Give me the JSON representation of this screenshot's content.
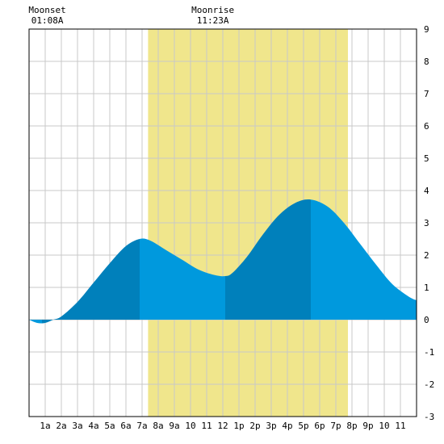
{
  "chart_data": {
    "type": "area",
    "x_unit": "hour of day",
    "xlim": [
      0,
      24
    ],
    "ylim": [
      -3,
      9
    ],
    "x_tick_labels": [
      "1a",
      "2a",
      "3a",
      "4a",
      "5a",
      "6a",
      "7a",
      "8a",
      "9a",
      "10",
      "11",
      "12",
      "1p",
      "2p",
      "3p",
      "4p",
      "5p",
      "6p",
      "7p",
      "8p",
      "9p",
      "10",
      "11"
    ],
    "y_tick_labels": [
      "-3",
      "-2",
      "-1",
      "0",
      "1",
      "2",
      "3",
      "4",
      "5",
      "6",
      "7",
      "8",
      "9"
    ],
    "grid": true,
    "daylight_band": {
      "start": 7.37,
      "end": 19.75,
      "color": "#f0e68c"
    },
    "moon_events": [
      {
        "label": "Moonset",
        "time": "01:08A",
        "x": 1.13
      },
      {
        "label": "Moonrise",
        "time": "11:23A",
        "x": 11.38
      }
    ],
    "tide_extremes": [
      {
        "kind": "low",
        "x": 0.8,
        "y": -0.12
      },
      {
        "kind": "high",
        "x": 6.85,
        "y": 2.5
      },
      {
        "kind": "low",
        "x": 12.15,
        "y": 1.35
      },
      {
        "kind": "high",
        "x": 17.45,
        "y": 3.72
      },
      {
        "kind": "low",
        "x": 24.0,
        "y": 0.6
      }
    ],
    "series": [
      {
        "values": [
          [
            0,
            0
          ],
          [
            0.5,
            -0.1
          ],
          [
            1,
            -0.1
          ],
          [
            1.5,
            0
          ],
          [
            2,
            0.1
          ],
          [
            3,
            0.55
          ],
          [
            4,
            1.15
          ],
          [
            5,
            1.75
          ],
          [
            6,
            2.28
          ],
          [
            6.85,
            2.5
          ],
          [
            7.5,
            2.45
          ],
          [
            8.5,
            2.15
          ],
          [
            9.5,
            1.85
          ],
          [
            10.5,
            1.55
          ],
          [
            11.5,
            1.38
          ],
          [
            12.15,
            1.35
          ],
          [
            12.6,
            1.45
          ],
          [
            13.5,
            1.95
          ],
          [
            14.5,
            2.65
          ],
          [
            15.5,
            3.25
          ],
          [
            16.5,
            3.62
          ],
          [
            17.45,
            3.72
          ],
          [
            18.5,
            3.5
          ],
          [
            19.5,
            3.0
          ],
          [
            20.5,
            2.35
          ],
          [
            21.5,
            1.7
          ],
          [
            22.5,
            1.1
          ],
          [
            23.5,
            0.72
          ],
          [
            24,
            0.6
          ]
        ]
      }
    ],
    "colors": {
      "water": "#0099dd",
      "water_alt": "#0080bb",
      "grid": "#c8c8c8",
      "border": "#000000"
    }
  }
}
